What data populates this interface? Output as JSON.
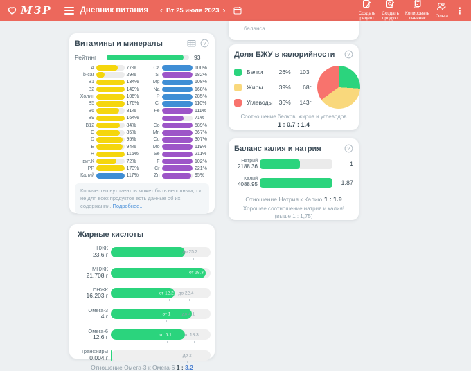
{
  "header": {
    "logo": "МЗР",
    "title": "Дневник питания",
    "prev": "‹",
    "next": "›",
    "date": "Вт 25 июля 2023",
    "actions": [
      {
        "line1": "Создать",
        "line2": "рецепт"
      },
      {
        "line1": "Создать",
        "line2": "продукт"
      },
      {
        "line1": "Копировать",
        "line2": "дневник"
      }
    ],
    "user": "Ольга",
    "kebab": "⋮",
    "background_color": "#ec685c"
  },
  "partial": {
    "text": "баланса"
  },
  "colors": {
    "yellow": "#f5d60d",
    "blue": "#3f8ed5",
    "purple": "#9d55c8",
    "green": "#2bd47d",
    "link": "#4a90d9"
  },
  "vitamins": {
    "title": "Витамины и минералы",
    "rating_label": "Рейтинг",
    "rating_value": "93",
    "rating_pct": 93,
    "left": [
      {
        "label": "A",
        "pct": "77%",
        "value": 77,
        "color": "yellow"
      },
      {
        "label": "b-car",
        "pct": "29%",
        "value": 29,
        "color": "yellow"
      },
      {
        "label": "B1",
        "pct": "134%",
        "value": 134,
        "color": "yellow"
      },
      {
        "label": "B2",
        "pct": "149%",
        "value": 149,
        "color": "yellow"
      },
      {
        "label": "Холин",
        "pct": "106%",
        "value": 106,
        "color": "yellow"
      },
      {
        "label": "B5",
        "pct": "176%",
        "value": 176,
        "color": "yellow"
      },
      {
        "label": "B6",
        "pct": "81%",
        "value": 81,
        "color": "yellow"
      },
      {
        "label": "B9",
        "pct": "164%",
        "value": 164,
        "color": "yellow"
      },
      {
        "label": "B12",
        "pct": "84%",
        "value": 84,
        "color": "yellow"
      },
      {
        "label": "C",
        "pct": "85%",
        "value": 85,
        "color": "yellow"
      },
      {
        "label": "D",
        "pct": "95%",
        "value": 95,
        "color": "yellow"
      },
      {
        "label": "E",
        "pct": "94%",
        "value": 94,
        "color": "yellow"
      },
      {
        "label": "H",
        "pct": "116%",
        "value": 116,
        "color": "yellow"
      },
      {
        "label": "вит.K",
        "pct": "72%",
        "value": 72,
        "color": "yellow"
      },
      {
        "label": "PP",
        "pct": "173%",
        "value": 173,
        "color": "yellow"
      },
      {
        "label": "Калий",
        "pct": "117%",
        "value": 117,
        "color": "blue"
      }
    ],
    "right": [
      {
        "label": "Ca",
        "pct": "100%",
        "value": 100,
        "color": "blue"
      },
      {
        "label": "Si",
        "pct": "182%",
        "value": 182,
        "color": "purple"
      },
      {
        "label": "Mg",
        "pct": "108%",
        "value": 108,
        "color": "blue"
      },
      {
        "label": "Na",
        "pct": "168%",
        "value": 168,
        "color": "blue"
      },
      {
        "label": "P",
        "pct": "285%",
        "value": 285,
        "color": "blue"
      },
      {
        "label": "Cl",
        "pct": "110%",
        "value": 110,
        "color": "blue"
      },
      {
        "label": "Fe",
        "pct": "111%",
        "value": 111,
        "color": "purple"
      },
      {
        "label": "I",
        "pct": "71%",
        "value": 71,
        "color": "purple"
      },
      {
        "label": "Co",
        "pct": "589%",
        "value": 589,
        "color": "purple"
      },
      {
        "label": "Mn",
        "pct": "367%",
        "value": 367,
        "color": "purple"
      },
      {
        "label": "Cu",
        "pct": "307%",
        "value": 307,
        "color": "purple"
      },
      {
        "label": "Mo",
        "pct": "119%",
        "value": 119,
        "color": "purple"
      },
      {
        "label": "Se",
        "pct": "211%",
        "value": 211,
        "color": "purple"
      },
      {
        "label": "F",
        "pct": "102%",
        "value": 102,
        "color": "purple"
      },
      {
        "label": "Cr",
        "pct": "221%",
        "value": 221,
        "color": "purple"
      },
      {
        "label": "Zn",
        "pct": "95%",
        "value": 95,
        "color": "purple"
      }
    ],
    "note": "Количество нутриентов может быть неполным, т.к. не для всех продуктов есть данные об их содержании. ",
    "note_link": "Подробнее..."
  },
  "bju": {
    "title": "Доля БЖУ в калорийности",
    "rows": [
      {
        "label": "Белки",
        "pct": "26%",
        "pct_num": 26,
        "grams": "103г",
        "color": "#2bd47d"
      },
      {
        "label": "Жиры",
        "pct": "39%",
        "pct_num": 39,
        "grams": "68г",
        "color": "#f9d87c"
      },
      {
        "label": "Углеводы",
        "pct": "36%",
        "pct_num": 36,
        "grams": "143г",
        "color": "#f8736d"
      }
    ],
    "footer1": "Соотношение белков, жиров и углеводов",
    "footer2": "1 : 0.7 : 1.4"
  },
  "balance": {
    "title": "Баланс калия и натрия",
    "rows": [
      {
        "label": "Натрий",
        "amount": "2188.36",
        "value": "1",
        "fill": 55
      },
      {
        "label": "Калий",
        "amount": "4088.95",
        "value": "1.87",
        "fill": 100
      }
    ],
    "ratio_label": "Отношение Натрия к Калию",
    "ratio_value": "1 : 1.9",
    "note": "Хорошее соотношение натрия и калия! (выше 1 : 1,75)"
  },
  "fatty": {
    "title": "Жирные кислоты",
    "rows": [
      {
        "name": "НЖК",
        "amount": "23.6 г",
        "fill": 74,
        "labels": [
          {
            "t": "до 25.2",
            "x": 87,
            "c": "gray"
          }
        ]
      },
      {
        "name": "МНЖК",
        "amount": "21.708 г",
        "fill": 95,
        "labels": [
          {
            "t": "от 18.3",
            "x": 93,
            "c": "white"
          }
        ]
      },
      {
        "name": "ПНЖК",
        "amount": "16.203 г",
        "fill": 64,
        "labels": [
          {
            "t": "от 12.2",
            "x": 63,
            "c": "white"
          },
          {
            "t": "до 22.4",
            "x": 83,
            "c": "gray"
          }
        ]
      },
      {
        "name": "Омега-3",
        "amount": "4 г",
        "fill": 81,
        "labels": [
          {
            "t": "от 1",
            "x": 60,
            "c": "white"
          },
          {
            "t": "до 4.1",
            "x": 84,
            "c": "gray"
          }
        ]
      },
      {
        "name": "Омега-6",
        "amount": "12.6 г",
        "fill": 74,
        "labels": [
          {
            "t": "от 5.1",
            "x": 61,
            "c": "white"
          },
          {
            "t": "до 18.3",
            "x": 88,
            "c": "gray"
          }
        ]
      },
      {
        "name": "Трансжиры",
        "amount": "0.004 г",
        "fill": 0.5,
        "labels": [
          {
            "t": "до 2",
            "x": 81,
            "c": "gray"
          }
        ]
      }
    ],
    "footer_label": "Отношение Омега-3 к Омега-6",
    "footer_prefix": "1 :",
    "footer_value": "3.2"
  },
  "chart_data": {
    "type": "pie",
    "title": "Доля БЖУ в калорийности",
    "categories": [
      "Белки",
      "Жиры",
      "Углеводы"
    ],
    "values": [
      26,
      39,
      36
    ],
    "grams": [
      103,
      68,
      143
    ],
    "colors": [
      "#2bd47d",
      "#f9d87c",
      "#f8736d"
    ],
    "legend_position": "left"
  }
}
